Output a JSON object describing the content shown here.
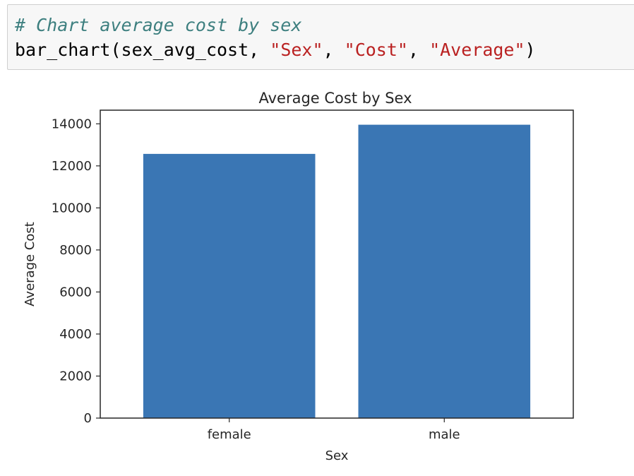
{
  "code_cell": {
    "comment": "# Chart average cost by sex",
    "call": {
      "function": "bar_chart",
      "arg_var": "sex_avg_cost",
      "arg_1": "\"Sex\"",
      "arg_2": "\"Cost\"",
      "arg_3": "\"Average\""
    },
    "colors": {
      "comment": "#3d7f7f",
      "string": "#ba2121",
      "background": "#f7f7f7"
    }
  },
  "chart_data": {
    "type": "bar",
    "title": "Average Cost by Sex",
    "xlabel": "Sex",
    "ylabel": "Average Cost",
    "categories": [
      "female",
      "male"
    ],
    "values": [
      12570,
      13957
    ],
    "ylim": [
      0,
      14650
    ],
    "yticks": [
      0,
      2000,
      4000,
      6000,
      8000,
      10000,
      12000,
      14000
    ],
    "bar_color": "#3a76b4",
    "grid": false,
    "legend": false
  }
}
